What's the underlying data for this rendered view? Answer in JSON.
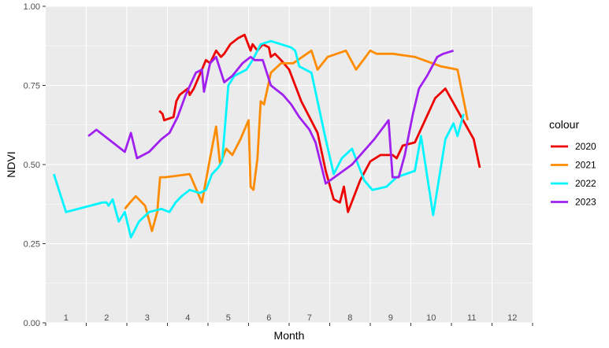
{
  "chart_data": {
    "type": "line",
    "xlabel": "Month",
    "ylabel": "NDVI",
    "categories": [
      "1",
      "2",
      "3",
      "4",
      "5",
      "6",
      "7",
      "8",
      "9",
      "10",
      "11",
      "12"
    ],
    "xlim": [
      0.5,
      12.5
    ],
    "ylim": [
      0,
      1
    ],
    "yticks": [
      "0.00",
      "0.25",
      "0.50",
      "0.75",
      "1.00"
    ],
    "grid": true,
    "background": "#ebebeb",
    "legend_title": "colour",
    "legend_position": "right",
    "series": [
      {
        "name": "2020",
        "color": "#ee0000",
        "x": [
          3.3,
          3.38,
          3.42,
          3.65,
          3.72,
          3.8,
          4.0,
          4.05,
          4.15,
          4.35,
          4.45,
          4.55,
          4.7,
          4.82,
          4.9,
          5.05,
          5.25,
          5.4,
          5.55,
          5.6,
          5.72,
          5.85,
          6.0,
          6.05,
          6.15,
          6.3,
          6.5,
          6.8,
          7.2,
          7.4,
          7.6,
          7.75,
          7.85,
          7.95,
          8.25,
          8.5,
          8.75,
          9.05,
          9.15,
          9.3,
          9.6,
          10.1,
          10.35,
          11.05,
          11.2
        ],
        "y": [
          0.67,
          0.66,
          0.64,
          0.65,
          0.7,
          0.72,
          0.74,
          0.72,
          0.74,
          0.8,
          0.83,
          0.82,
          0.86,
          0.84,
          0.85,
          0.88,
          0.9,
          0.91,
          0.86,
          0.88,
          0.86,
          0.88,
          0.87,
          0.84,
          0.85,
          0.83,
          0.8,
          0.7,
          0.6,
          0.48,
          0.39,
          0.38,
          0.43,
          0.35,
          0.45,
          0.51,
          0.53,
          0.53,
          0.52,
          0.56,
          0.57,
          0.71,
          0.74,
          0.58,
          0.49
        ]
      },
      {
        "name": "2021",
        "color": "#ff8c00",
        "x": [
          2.45,
          2.58,
          2.72,
          2.95,
          3.12,
          3.25,
          3.32,
          3.45,
          4.05,
          4.35,
          4.55,
          4.7,
          4.8,
          4.95,
          5.1,
          5.3,
          5.5,
          5.55,
          5.62,
          5.72,
          5.8,
          5.88,
          6.05,
          6.3,
          6.6,
          7.05,
          7.2,
          7.45,
          7.9,
          8.15,
          8.5,
          8.65,
          9.05,
          9.6,
          10.25,
          10.65,
          10.9
        ],
        "y": [
          0.36,
          0.38,
          0.4,
          0.37,
          0.29,
          0.35,
          0.46,
          0.46,
          0.47,
          0.38,
          0.52,
          0.62,
          0.5,
          0.55,
          0.53,
          0.58,
          0.64,
          0.43,
          0.42,
          0.52,
          0.7,
          0.69,
          0.79,
          0.82,
          0.82,
          0.86,
          0.8,
          0.84,
          0.86,
          0.8,
          0.86,
          0.85,
          0.85,
          0.84,
          0.81,
          0.8,
          0.64
        ]
      },
      {
        "name": "2022",
        "color": "#00f5ff",
        "x": [
          0.7,
          1.0,
          1.9,
          2.0,
          2.05,
          2.15,
          2.3,
          2.45,
          2.6,
          2.8,
          3.05,
          3.35,
          3.55,
          3.7,
          3.85,
          4.05,
          4.3,
          4.45,
          4.6,
          4.75,
          4.85,
          5.0,
          5.15,
          5.45,
          5.6,
          5.8,
          6.05,
          6.3,
          6.55,
          6.65,
          6.75,
          7.05,
          7.4,
          7.6,
          7.8,
          8.05,
          8.35,
          8.55,
          8.9,
          9.15,
          9.6,
          9.75,
          10.05,
          10.35,
          10.55,
          10.65,
          10.8
        ],
        "y": [
          0.47,
          0.35,
          0.38,
          0.38,
          0.37,
          0.39,
          0.32,
          0.35,
          0.27,
          0.32,
          0.35,
          0.36,
          0.35,
          0.38,
          0.4,
          0.42,
          0.41,
          0.42,
          0.47,
          0.49,
          0.51,
          0.75,
          0.78,
          0.8,
          0.83,
          0.88,
          0.89,
          0.88,
          0.87,
          0.86,
          0.81,
          0.79,
          0.58,
          0.47,
          0.52,
          0.55,
          0.45,
          0.42,
          0.43,
          0.46,
          0.48,
          0.59,
          0.34,
          0.58,
          0.63,
          0.59,
          0.66
        ]
      },
      {
        "name": "2023",
        "color": "#a020f0",
        "x": [
          1.55,
          1.75,
          2.45,
          2.55,
          2.6,
          2.75,
          3.05,
          3.35,
          3.55,
          3.75,
          3.95,
          4.2,
          4.35,
          4.4,
          4.55,
          4.7,
          4.9,
          5.1,
          5.35,
          5.55,
          5.65,
          5.85,
          6.05,
          6.35,
          6.55,
          6.75,
          7.0,
          7.15,
          7.4,
          8.05,
          8.6,
          8.95,
          9.05,
          9.2,
          9.35,
          9.55,
          9.7,
          9.9,
          10.15,
          10.3,
          10.55
        ],
        "y": [
          0.59,
          0.61,
          0.54,
          0.58,
          0.6,
          0.52,
          0.54,
          0.58,
          0.6,
          0.65,
          0.72,
          0.79,
          0.8,
          0.73,
          0.82,
          0.84,
          0.76,
          0.78,
          0.82,
          0.84,
          0.83,
          0.83,
          0.75,
          0.72,
          0.69,
          0.65,
          0.61,
          0.57,
          0.44,
          0.5,
          0.58,
          0.64,
          0.46,
          0.46,
          0.53,
          0.66,
          0.74,
          0.78,
          0.84,
          0.85,
          0.86
        ]
      }
    ]
  }
}
